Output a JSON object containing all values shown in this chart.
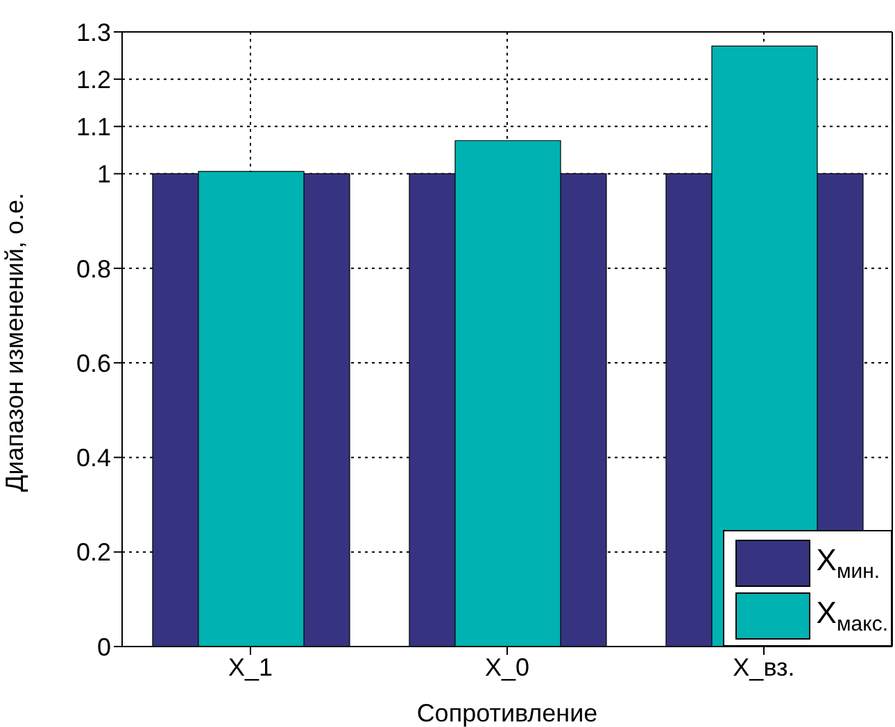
{
  "chart_data": {
    "type": "bar",
    "xlabel": "Сопротивление",
    "ylabel": "Диапазон изменений, о.е.",
    "categories": [
      "X_1",
      "X_0",
      "X_вз."
    ],
    "series": [
      {
        "name": "X$_{мин.}$",
        "color": "#363480",
        "values": [
          1,
          1,
          1
        ]
      },
      {
        "name": "X$_{макс.}$",
        "color": "#00b2b2",
        "values": [
          1.005,
          1.07,
          1.27
        ]
      }
    ],
    "ylim": [
      0,
      1.3
    ],
    "yticks": [
      0,
      0.2,
      0.4,
      0.6,
      0.8,
      1,
      1.1,
      1.2,
      1.3
    ],
    "grid": true,
    "legend": "bottom right"
  }
}
